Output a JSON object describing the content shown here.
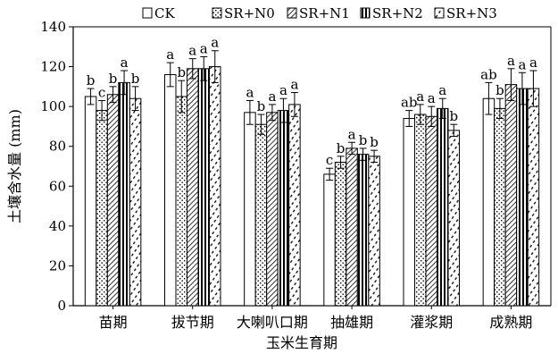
{
  "chart_data": {
    "type": "bar",
    "title": "",
    "xlabel": "玉米生育期",
    "ylabel": "土壤含水量 (mm)",
    "ylim": [
      0,
      140
    ],
    "yticks": [
      0,
      20,
      40,
      60,
      80,
      100,
      120,
      140
    ],
    "grid": false,
    "legend_position": "top",
    "categories": [
      "苗期",
      "拔节期",
      "大喇叭口期",
      "抽雄期",
      "灌浆期",
      "成熟期"
    ],
    "series": [
      {
        "name": "CK",
        "pattern": "blank",
        "values": [
          105,
          116,
          97,
          66,
          94,
          104
        ],
        "errors": [
          4,
          6,
          6,
          3,
          4,
          8
        ],
        "labels": [
          "b",
          "a",
          "a",
          "c",
          "ab",
          "ab"
        ]
      },
      {
        "name": "SR+N0",
        "pattern": "dots",
        "values": [
          98,
          105,
          91,
          72,
          96,
          99
        ],
        "errors": [
          5,
          8,
          5,
          3,
          5,
          5
        ],
        "labels": [
          "c",
          "b",
          "b",
          "b",
          "a",
          "b"
        ]
      },
      {
        "name": "SR+N1",
        "pattern": "diagonal",
        "values": [
          106,
          119,
          97,
          79,
          95,
          111
        ],
        "errors": [
          4,
          5,
          4,
          3,
          5,
          8
        ],
        "labels": [
          "b",
          "a",
          "a",
          "a",
          "a",
          "a"
        ]
      },
      {
        "name": "SR+N2",
        "pattern": "vertical",
        "values": [
          112,
          119,
          98,
          76,
          99,
          109
        ],
        "errors": [
          6,
          6,
          6,
          3,
          5,
          8
        ],
        "labels": [
          "a",
          "a",
          "a",
          "b",
          "a",
          "a"
        ]
      },
      {
        "name": "SR+N3",
        "pattern": "dashes",
        "values": [
          104,
          120,
          101,
          75,
          88,
          109
        ],
        "errors": [
          6,
          8,
          6,
          3,
          3,
          9
        ],
        "labels": [
          "b",
          "a",
          "a",
          "b",
          "b",
          "a"
        ]
      }
    ]
  }
}
